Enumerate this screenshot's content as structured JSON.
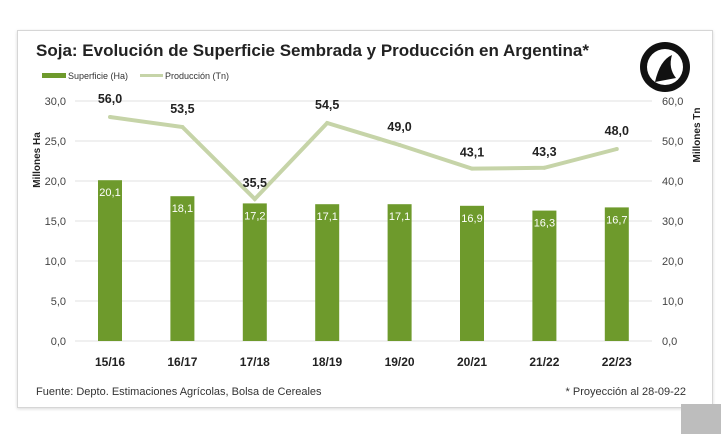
{
  "chart_data": {
    "type": "bar+line",
    "title": "Soja: Evolución  de Superficie Sembrada  y Producción  en Argentina*",
    "categories": [
      "15/16",
      "16/17",
      "17/18",
      "18/19",
      "19/20",
      "20/21",
      "21/22",
      "22/23"
    ],
    "series": [
      {
        "name": "Superficie (Ha)",
        "type": "bar",
        "axis": "left",
        "values": [
          20.1,
          18.1,
          17.2,
          17.1,
          17.1,
          16.9,
          16.3,
          16.7
        ],
        "labels": [
          "20,1",
          "18,1",
          "17,2",
          "17,1",
          "17,1",
          "16,9",
          "16,3",
          "16,7"
        ],
        "color": "#6e9a2c"
      },
      {
        "name": "Producción (Tn)",
        "type": "line",
        "axis": "right",
        "values": [
          56.0,
          53.5,
          35.5,
          54.5,
          49.0,
          43.1,
          43.3,
          48.0
        ],
        "labels": [
          "56,0",
          "53,5",
          "35,5",
          "54,5",
          "49,0",
          "43,1",
          "43,3",
          "48,0"
        ],
        "color": "#c6d4a8",
        "highlight_color": "#9bc25a"
      }
    ],
    "ylabel_left": "Millones Ha",
    "ylabel_right": "Millones Tn",
    "ylim_left": [
      0,
      30
    ],
    "ylim_right": [
      0,
      60
    ],
    "yticks_left": [
      "0,0",
      "5,0",
      "10,0",
      "15,0",
      "20,0",
      "25,0",
      "30,0"
    ],
    "yticks_right": [
      "0,0",
      "10,0",
      "20,0",
      "30,0",
      "40,0",
      "50,0",
      "60,0"
    ],
    "legend_position": "top-left",
    "footnote_left": "Fuente: Depto. Estimaciones Agrícolas, Bolsa de Cereales",
    "footnote_right": "* Proyección al 28-09-22"
  }
}
